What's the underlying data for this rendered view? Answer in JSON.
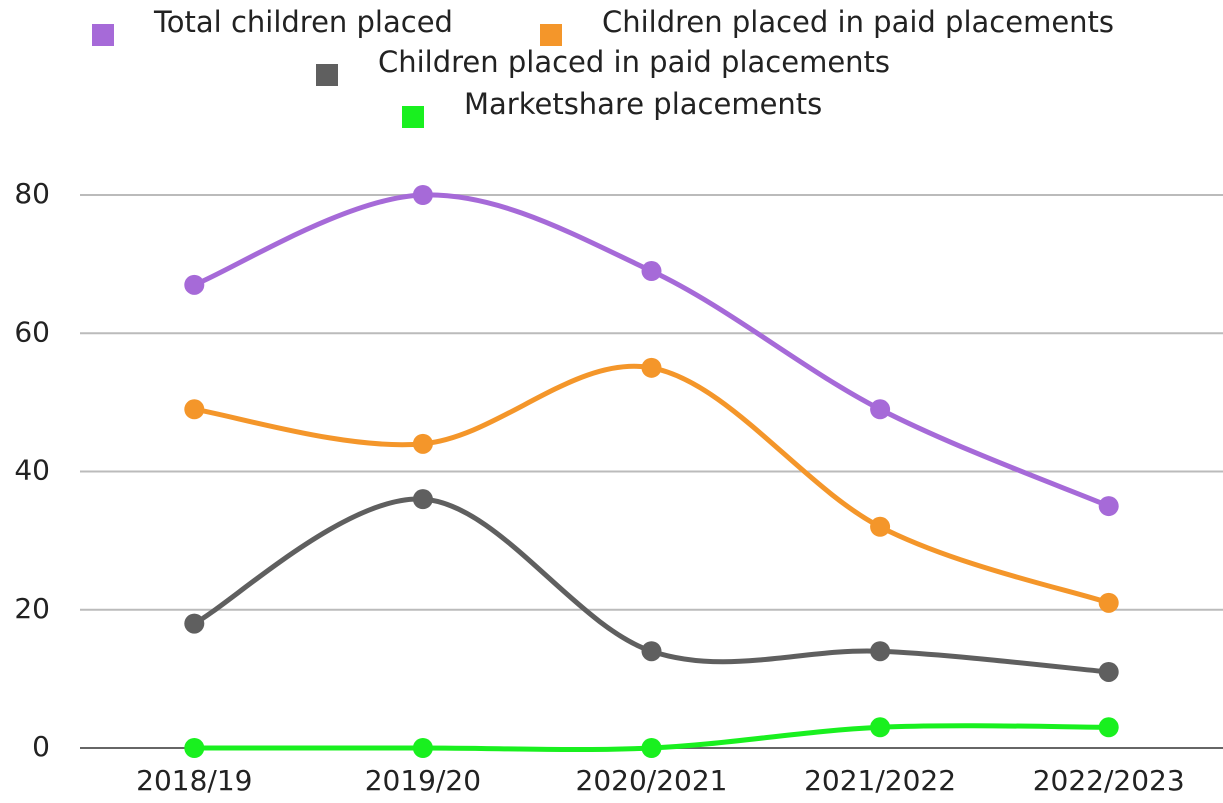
{
  "chart_data": {
    "type": "line",
    "categories": [
      "2018/19",
      "2019/20",
      "2020/2021",
      "2021/2022",
      "2022/2023"
    ],
    "series": [
      {
        "name": "Total children placed",
        "color": "#a66ad8",
        "values": [
          67,
          80,
          69,
          49,
          35
        ]
      },
      {
        "name": "Children placed in paid placements",
        "color": "#f4962a",
        "values": [
          49,
          44,
          55,
          32,
          21
        ]
      },
      {
        "name": "Children placed in paid placements",
        "color": "#5f5f5f",
        "values": [
          18,
          36,
          14,
          14,
          11
        ]
      },
      {
        "name": "Marketshare placements",
        "color": "#19f01f",
        "values": [
          0,
          0,
          0,
          3,
          3
        ]
      }
    ],
    "ylim": [
      0,
      80
    ],
    "yticks": [
      0,
      20,
      40,
      60,
      80
    ],
    "grid": true,
    "smooth": true,
    "legend": "top"
  }
}
